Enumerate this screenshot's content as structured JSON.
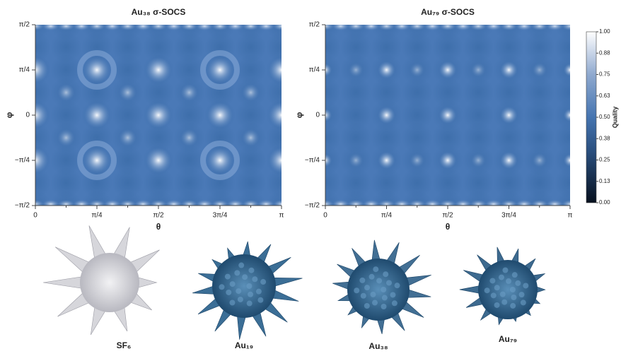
{
  "chart_data": [
    {
      "type": "heatmap",
      "title": "Au₃₈ σ-SOCS",
      "x_label": "θ",
      "y_label": "φ",
      "xlim": [
        0,
        3.1416
      ],
      "xticks": [
        {
          "value": 0,
          "label": "0"
        },
        {
          "value": 0.7854,
          "label": "π/4"
        },
        {
          "value": 1.5708,
          "label": "π/2"
        },
        {
          "value": 2.3562,
          "label": "3π/4"
        },
        {
          "value": 3.1416,
          "label": "π"
        }
      ],
      "ylim": [
        -1.5708,
        1.5708
      ],
      "yticks": [
        {
          "value": -1.5708,
          "label": "−π/2"
        },
        {
          "value": -0.7854,
          "label": "−π/4"
        },
        {
          "value": 0,
          "label": "0"
        },
        {
          "value": 0.7854,
          "label": "π/4"
        },
        {
          "value": 1.5708,
          "label": "π/2"
        }
      ]
    },
    {
      "type": "heatmap",
      "title": "Au₇₉ σ-SOCS",
      "x_label": "θ",
      "y_label": "φ",
      "xlim": [
        0,
        3.1416
      ],
      "xticks": [
        {
          "value": 0,
          "label": "0"
        },
        {
          "value": 0.7854,
          "label": "π/4"
        },
        {
          "value": 1.5708,
          "label": "π/2"
        },
        {
          "value": 2.3562,
          "label": "3π/4"
        },
        {
          "value": 3.1416,
          "label": "π"
        }
      ],
      "ylim": [
        -1.5708,
        1.5708
      ],
      "yticks": [
        {
          "value": -1.5708,
          "label": "−π/2"
        },
        {
          "value": -0.7854,
          "label": "−π/4"
        },
        {
          "value": 0,
          "label": "0"
        },
        {
          "value": 0.7854,
          "label": "π/4"
        },
        {
          "value": 1.5708,
          "label": "π/2"
        }
      ],
      "colorbar": {
        "label": "Quality",
        "lim": [
          0,
          1
        ],
        "ticks": [
          {
            "value": 0,
            "label": "0.00"
          },
          {
            "value": 0.125,
            "label": "0.13"
          },
          0.25,
          {
            "value": 0.375,
            "label": "0.38"
          },
          {
            "value": 0.5,
            "label": "0.50"
          },
          {
            "value": 0.625,
            "label": "0.63"
          },
          0.75,
          {
            "value": 0.875,
            "label": "0.88"
          },
          {
            "value": 1,
            "label": "1.00"
          }
        ]
      }
    }
  ],
  "structures": [
    {
      "label": "SF₆"
    },
    {
      "label": "Au₁₉"
    },
    {
      "label": "Au₃₈"
    },
    {
      "label": "Au₇₉"
    }
  ]
}
